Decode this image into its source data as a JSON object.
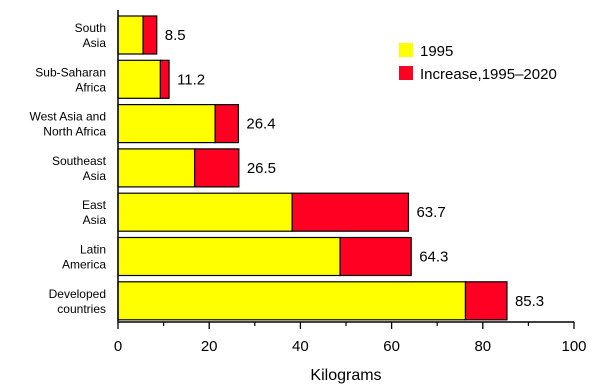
{
  "chart_data": {
    "type": "bar",
    "orientation": "horizontal",
    "stacked": true,
    "categories": [
      [
        "South",
        "Asia"
      ],
      [
        "Sub-Saharan",
        "Africa"
      ],
      [
        "West Asia and",
        "North Africa"
      ],
      [
        "Southeast",
        "Asia"
      ],
      [
        "East",
        "Asia"
      ],
      [
        "Latin",
        "America"
      ],
      [
        "Developed",
        "countries"
      ]
    ],
    "series": [
      {
        "name": "1995",
        "color": "#ffff00",
        "values": [
          5.5,
          9.3,
          21.3,
          16.8,
          38.2,
          48.7,
          76.2
        ]
      },
      {
        "name": "Increase,1995–2020",
        "color": "#ff0022",
        "values": [
          3.0,
          1.9,
          5.1,
          9.7,
          25.5,
          15.6,
          9.1
        ]
      }
    ],
    "totals": [
      "8.5",
      "11.2",
      "26.4",
      "26.5",
      "63.7",
      "64.3",
      "85.3"
    ],
    "xlabel": "Kilograms",
    "xlim": [
      0,
      100
    ],
    "xticks": [
      0,
      20,
      40,
      60,
      80,
      100
    ],
    "grid": false,
    "legend_position": "top-right"
  }
}
